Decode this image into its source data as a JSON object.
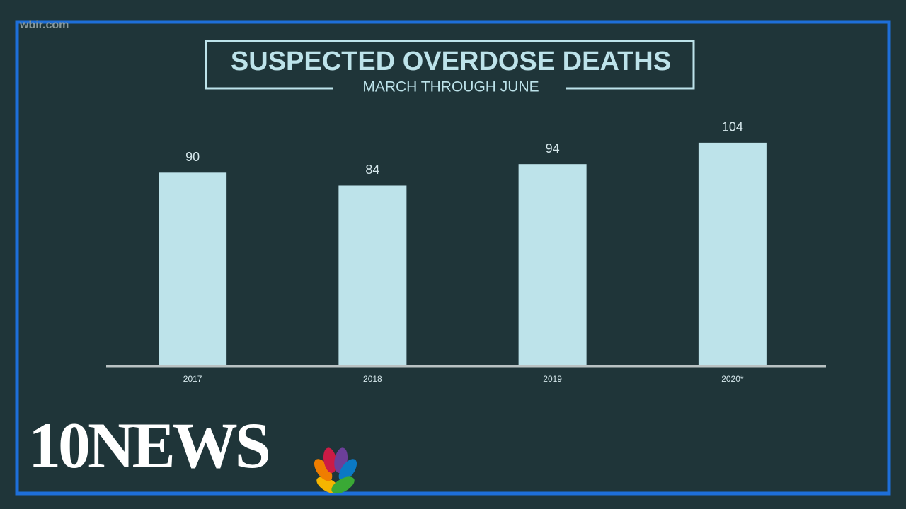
{
  "watermark": "wbir.com",
  "logo": "10NEWS",
  "chart_data": {
    "type": "bar",
    "title": "SUSPECTED OVERDOSE DEATHS",
    "subtitle": "MARCH THROUGH JUNE",
    "categories": [
      "2017",
      "2018",
      "2019",
      "2020*"
    ],
    "values": [
      90,
      84,
      94,
      104
    ],
    "color": "#bde3ea"
  }
}
